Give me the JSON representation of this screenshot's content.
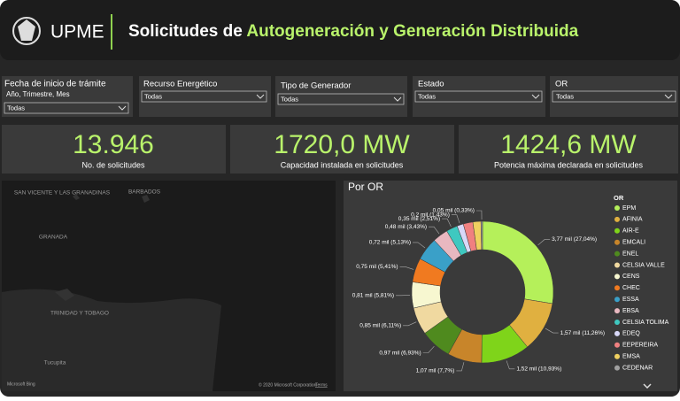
{
  "header": {
    "brand": "UPME",
    "title_prefix": "Solicitudes de",
    "title_highlight": "Autogeneración y Generación Distribuida"
  },
  "filters": [
    {
      "label": "Fecha de inicio de trámite",
      "sublabel": "Año, Trimestre, Mes",
      "value": "Todas"
    },
    {
      "label": "Recurso Energético",
      "value": "Todas"
    },
    {
      "label": "Tipo de Generador",
      "value": "Todas"
    },
    {
      "label": "Estado",
      "value": "Todas"
    },
    {
      "label": "OR",
      "value": "Todas"
    }
  ],
  "kpis": [
    {
      "value": "13.946",
      "label": "No. de solicitudes"
    },
    {
      "value": "1720,0 MW",
      "label": "Capacidad instalada en solicitudes"
    },
    {
      "value": "1424,6 MW",
      "label": "Potencia máxima declarada en solicitudes"
    }
  ],
  "map": {
    "places": [
      "SAN VICENTE Y LAS GRANADINAS",
      "BARBADOS",
      "GRANADA",
      "TRINIDAD Y TOBAGO",
      "Tucupita"
    ],
    "credits": "© 2020 Microsoft Corporation",
    "terms": "Terms",
    "logo": "Microsoft Bing"
  },
  "chart_data": {
    "type": "pie",
    "title": "Por OR",
    "legend_title": "OR",
    "categories": [
      "EPM",
      "AFINIA",
      "AIR-E",
      "EMCALI",
      "ENEL",
      "CELSIA VALLE",
      "CENS",
      "CHEC",
      "ESSA",
      "EBSA",
      "CELSIA TOLIMA",
      "EDEQ",
      "EEPEREIRA",
      "EMSA",
      "CEDENAR"
    ],
    "values": [
      3770,
      1570,
      1520,
      1070,
      970,
      850,
      810,
      750,
      720,
      480,
      350,
      200,
      300,
      250,
      50
    ],
    "value_labels": [
      "3,77 mil (27,04%)",
      "1,57 mil (11,26%)",
      "1,52 mil (10,93%)",
      "1,07 mil (7,7%)",
      "0,97 mil (6,93%)",
      "0,85 mil (6,11%)",
      "0,81 mil (5,81%)",
      "0,75 mil (5,41%)",
      "0,72 mil (5,13%)",
      "0,48 mil (3,43%)",
      "0,35 mil (2,51%)",
      "0,2 mil (1,43%)",
      null,
      null,
      "0,05 mil (0,33%)"
    ],
    "colors": [
      "#b5f05a",
      "#e0b040",
      "#7fd41a",
      "#c8852a",
      "#4f8a1e",
      "#f0d9a0",
      "#f7f7d0",
      "#f07a20",
      "#3aa0c8",
      "#e8b8c0",
      "#3fc8c0",
      "#d8d8f8",
      "#f08080",
      "#f0d060",
      "#a0a0a0"
    ]
  }
}
